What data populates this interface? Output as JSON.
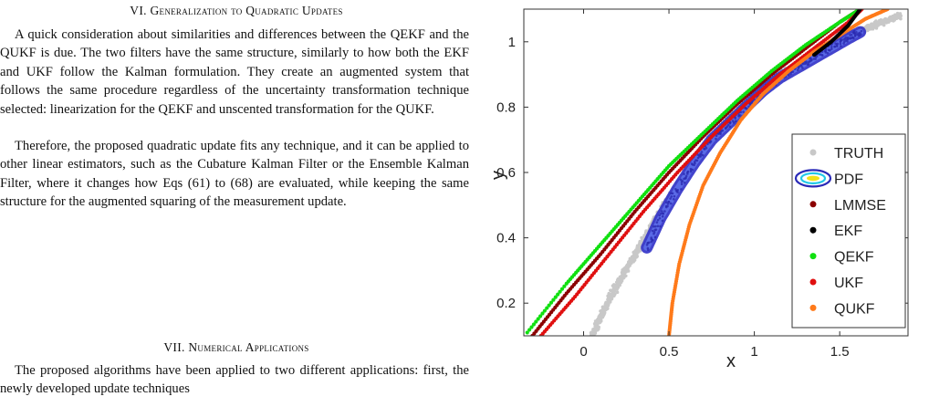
{
  "page": {
    "section6_heading": "VI. Generalization to Quadratic Updates",
    "section6_p1": "A quick consideration about similarities and differences between the QEKF and the QUKF is due. The two filters have the same structure, similarly to how both the EKF and UKF follow the Kalman formulation. They create an augmented system that follows the same procedure regardless of the uncertainty transformation technique selected: linearization for the QEKF and unscented transformation for the QUKF.",
    "section6_p2": "Therefore, the proposed quadratic update fits any technique, and it can be applied to other linear estimators, such as the Cubature Kalman Filter or the Ensemble Kalman Filter, where it changes how Eqs (61) to (68) are evaluated, while keeping the same structure for the augmented squaring of the measurement update.",
    "section7_heading": "VII. Numerical Applications",
    "section7_p1": "The proposed algorithms have been applied to two different applications: first, the newly developed update techniques"
  },
  "chart_data": {
    "type": "scatter",
    "title": "",
    "xlabel": "x",
    "ylabel": "y",
    "xlim": [
      -0.35,
      1.9
    ],
    "ylim": [
      0.1,
      1.1
    ],
    "xticks": [
      0,
      0.5,
      1,
      1.5
    ],
    "yticks": [
      0.2,
      0.4,
      0.6,
      0.8,
      1
    ],
    "xtick_labels": [
      "0",
      "0.5",
      "1",
      "1.5"
    ],
    "ytick_labels": [
      "0.2",
      "0.4",
      "0.6",
      "0.8",
      "1"
    ],
    "grid": false,
    "legend_position": "lower-right",
    "legend": [
      "TRUTH",
      "PDF",
      "LMMSE",
      "EKF",
      "QEKF",
      "UKF",
      "QUKF"
    ],
    "series": [
      {
        "name": "TRUTH",
        "color": "#c8c8c8",
        "kind": "points",
        "x": [
          0.05,
          0.12,
          0.2,
          0.28,
          0.36,
          0.45,
          0.55,
          0.65,
          0.75,
          0.85,
          0.95,
          1.05,
          1.15,
          1.25,
          1.35,
          1.45,
          1.55,
          1.65,
          1.75,
          1.85
        ],
        "y": [
          0.1,
          0.18,
          0.26,
          0.33,
          0.4,
          0.48,
          0.56,
          0.63,
          0.7,
          0.76,
          0.81,
          0.86,
          0.9,
          0.93,
          0.96,
          0.99,
          1.02,
          1.04,
          1.06,
          1.08
        ]
      },
      {
        "name": "PDF",
        "color": "#3a3acc",
        "kind": "contour",
        "x": [
          0.37,
          0.45,
          0.55,
          0.65,
          0.75,
          0.85,
          0.95,
          1.05,
          1.15,
          1.25,
          1.35,
          1.45,
          1.55,
          1.62
        ],
        "y": [
          0.37,
          0.46,
          0.55,
          0.63,
          0.7,
          0.75,
          0.8,
          0.85,
          0.89,
          0.92,
          0.95,
          0.98,
          1.01,
          1.03
        ]
      },
      {
        "name": "LMMSE",
        "color": "#8b0000",
        "kind": "points",
        "x": [
          -0.3,
          -0.1,
          0.1,
          0.3,
          0.5,
          0.7,
          0.9,
          1.1,
          1.3,
          1.5,
          1.62
        ],
        "y": [
          0.1,
          0.23,
          0.35,
          0.48,
          0.6,
          0.71,
          0.81,
          0.9,
          0.98,
          1.06,
          1.1
        ]
      },
      {
        "name": "EKF",
        "color": "#000000",
        "kind": "points",
        "x": [
          1.35,
          1.45,
          1.55,
          1.62
        ],
        "y": [
          0.96,
          1.0,
          1.05,
          1.1
        ]
      },
      {
        "name": "QEKF",
        "color": "#10e010",
        "kind": "points",
        "x": [
          -0.33,
          -0.1,
          0.1,
          0.3,
          0.5,
          0.7,
          0.9,
          1.1,
          1.3,
          1.5,
          1.62
        ],
        "y": [
          0.11,
          0.26,
          0.38,
          0.5,
          0.62,
          0.72,
          0.82,
          0.91,
          0.99,
          1.06,
          1.1
        ]
      },
      {
        "name": "UKF",
        "color": "#e01010",
        "kind": "points",
        "x": [
          -0.25,
          -0.05,
          0.15,
          0.35,
          0.55,
          0.75,
          0.95,
          1.15,
          1.35,
          1.55,
          1.63
        ],
        "y": [
          0.1,
          0.22,
          0.35,
          0.48,
          0.6,
          0.71,
          0.81,
          0.9,
          0.98,
          1.06,
          1.1
        ]
      },
      {
        "name": "QUKF",
        "color": "#ff7a1a",
        "kind": "points",
        "x": [
          0.5,
          0.52,
          0.56,
          0.62,
          0.7,
          0.8,
          0.92,
          1.05,
          1.2,
          1.35,
          1.5,
          1.65,
          1.78
        ],
        "y": [
          0.1,
          0.2,
          0.32,
          0.44,
          0.56,
          0.66,
          0.76,
          0.84,
          0.91,
          0.97,
          1.02,
          1.07,
          1.1
        ]
      }
    ]
  }
}
